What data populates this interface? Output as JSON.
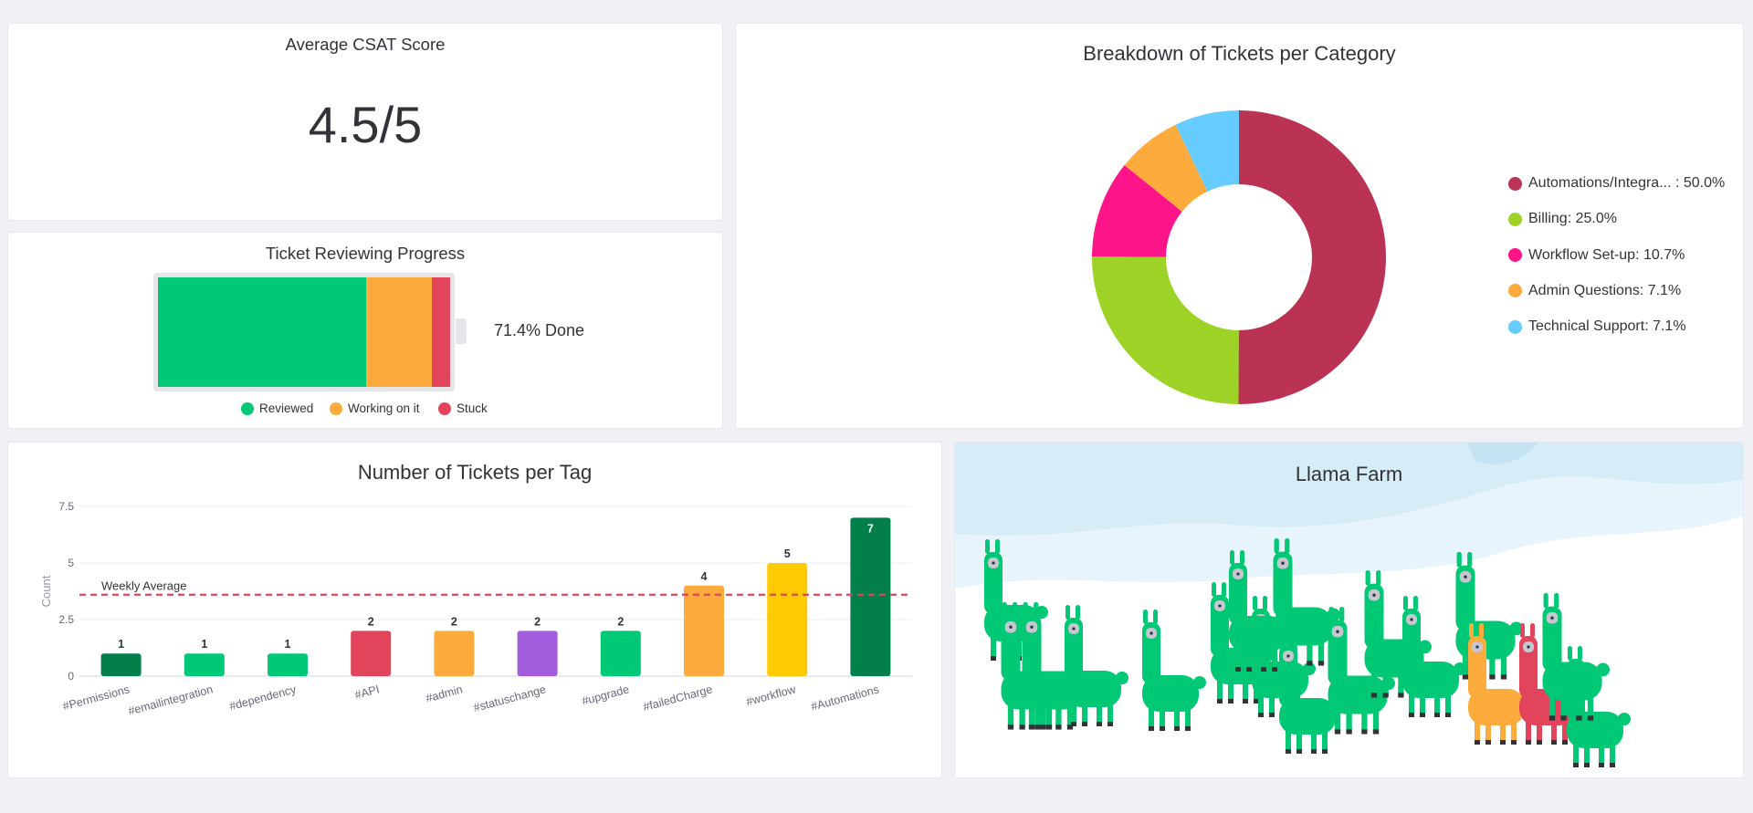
{
  "csat": {
    "title": "Average CSAT Score",
    "value": "4.5/5"
  },
  "progress": {
    "title": "Ticket Reviewing Progress",
    "done_label": "71.4% Done",
    "segments": [
      {
        "name": "Reviewed",
        "fraction": 0.714,
        "color": "#00c875"
      },
      {
        "name": "Working on it",
        "fraction": 0.224,
        "color": "#fdab3d"
      },
      {
        "name": "Stuck",
        "fraction": 0.062,
        "color": "#e2445c"
      }
    ],
    "legend": [
      "Reviewed",
      "Working on it",
      "Stuck"
    ]
  },
  "breakdown": {
    "title": "Breakdown of Tickets per Category",
    "chart_data": {
      "type": "pie",
      "title": "Breakdown of Tickets per Category",
      "slices": [
        {
          "label": "Automations/Integra... : 50.0%",
          "value": 50.0,
          "color": "#bb3354"
        },
        {
          "label": "Billing: 25.0%",
          "value": 25.0,
          "color": "#9cd326"
        },
        {
          "label": "Workflow Set-up: 10.7%",
          "value": 10.7,
          "color": "#ff158a"
        },
        {
          "label": "Admin Questions: 7.1%",
          "value": 7.1,
          "color": "#fdab3d"
        },
        {
          "label": "Technical Support: 7.1%",
          "value": 7.1,
          "color": "#66ccff"
        }
      ],
      "legend_position": "right"
    }
  },
  "tags": {
    "title": "Number of Tickets per Tag",
    "chart_data": {
      "type": "bar",
      "title": "Number of Tickets per Tag",
      "ylabel": "Count",
      "xlabel": "",
      "categories": [
        "#Permissions",
        "#emailintegration",
        "#dependency",
        "#API",
        "#admin",
        "#statuschange",
        "#upgrade",
        "#failedCharge",
        "#workflow",
        "#Automations"
      ],
      "values": [
        1,
        1,
        1,
        2,
        2,
        2,
        2,
        4,
        5,
        7
      ],
      "data_labels": [
        "1",
        "1",
        "1",
        "2",
        "2",
        "2",
        "2",
        "4",
        "5",
        "7"
      ],
      "colors": [
        "#037f4c",
        "#00c875",
        "#00c875",
        "#e2445c",
        "#fdab3d",
        "#a25ddc",
        "#00c875",
        "#fdab3d",
        "#ffcb00",
        "#037f4c"
      ],
      "ylim": [
        0,
        7.5
      ],
      "yticks": [
        "0",
        "2.5",
        "5",
        "7.5"
      ],
      "reference_line": {
        "label": "Weekly Average",
        "value": 3.6,
        "color": "#e2445c"
      },
      "grid": true
    }
  },
  "llama": {
    "title": "Llama Farm",
    "llamas": [
      {
        "color": "#00c875"
      },
      {
        "color": "#00c875"
      },
      {
        "color": "#00c875"
      },
      {
        "color": "#00c875"
      },
      {
        "color": "#00c875"
      },
      {
        "color": "#00c875"
      },
      {
        "color": "#00c875"
      },
      {
        "color": "#00c875"
      },
      {
        "color": "#00c875"
      },
      {
        "color": "#00c875"
      },
      {
        "color": "#00c875"
      },
      {
        "color": "#00c875"
      },
      {
        "color": "#00c875"
      },
      {
        "color": "#00c875"
      },
      {
        "color": "#fdab3d"
      },
      {
        "color": "#e2445c"
      },
      {
        "color": "#00c875"
      },
      {
        "color": "#00c875"
      }
    ]
  }
}
